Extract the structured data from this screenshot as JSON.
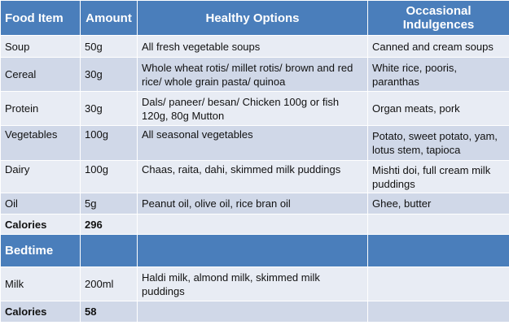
{
  "table": {
    "headers": [
      "Food Item",
      "Amount",
      "Healthy Options",
      "Occasional Indulgences"
    ],
    "rows": [
      {
        "item": "Soup",
        "amount": "50g",
        "healthy": "All fresh vegetable soups",
        "occasional": "Canned and cream soups"
      },
      {
        "item": "Cereal",
        "amount": "30g",
        "healthy": "Whole wheat rotis/ millet rotis/ brown and red rice/ whole grain pasta/ quinoa",
        "occasional": "White rice, pooris, paranthas"
      },
      {
        "item": "Protein",
        "amount": "30g",
        "healthy": "Dals/ paneer/ besan/ Chicken 100g or fish 120g, 80g Mutton",
        "occasional": "Organ meats, pork"
      },
      {
        "item": "Vegetables",
        "amount": "100g",
        "healthy": "All seasonal vegetables",
        "occasional": "Potato, sweet potato, yam, lotus stem, tapioca"
      },
      {
        "item": "Dairy",
        "amount": "100g",
        "healthy": "Chaas, raita, dahi, skimmed milk puddings",
        "occasional": "Mishti doi, full cream milk puddings"
      },
      {
        "item": "Oil",
        "amount": "5g",
        "healthy": "Peanut oil, olive oil, rice bran oil",
        "occasional": "Ghee, butter"
      }
    ],
    "calories_1": {
      "label": "Calories",
      "value": "296"
    },
    "section_label": "Bedtime",
    "bedtime_rows": [
      {
        "item": "Milk",
        "amount": "200ml",
        "healthy": "Haldi milk, almond milk, skimmed milk puddings",
        "occasional": ""
      }
    ],
    "calories_2": {
      "label": "Calories",
      "value": "58"
    }
  },
  "colors": {
    "header_blue": "#4a7ebb",
    "row_light": "#e8ecf4",
    "row_dark": "#d0d8e8"
  }
}
